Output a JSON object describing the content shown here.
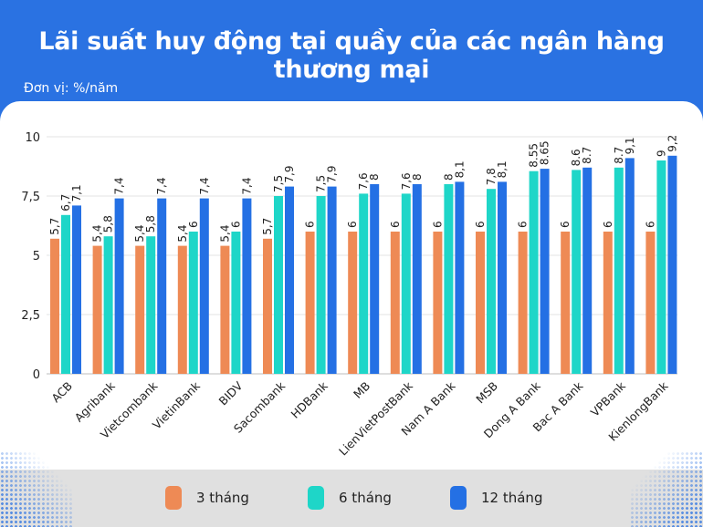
{
  "header": {
    "title": "Lãi suất huy động tại quầy của các ngân hàng thương mại",
    "unit": "Đơn vị: %/năm"
  },
  "colors": {
    "banner": "#2a72e2",
    "series_3m": "#ee8a55",
    "series_6m": "#1ed6c8",
    "series_12m": "#2470e4",
    "legend_strip": "#e0e0e0"
  },
  "legend": [
    {
      "label": "3 tháng",
      "color": "#ee8a55"
    },
    {
      "label": "6 tháng",
      "color": "#1ed6c8"
    },
    {
      "label": "12 tháng",
      "color": "#2470e4"
    }
  ],
  "chart_data": {
    "type": "bar",
    "title": "Lãi suất huy động tại quầy của các ngân hàng thương mại",
    "subtitle": "Đơn vị: %/năm",
    "xlabel": "",
    "ylabel": "%/năm",
    "ylim": [
      0,
      10
    ],
    "yticks": [
      0,
      2.5,
      5,
      7.5,
      10
    ],
    "ytick_labels": [
      "0",
      "2,5",
      "5",
      "7,5",
      "10"
    ],
    "grid": true,
    "legend_position": "bottom",
    "categories": [
      "ACB",
      "Agribank",
      "Vietcombank",
      "VietinBank",
      "BIDV",
      "Sacombank",
      "HDBank",
      "MB",
      "LienVietPostBank",
      "Nam A Bank",
      "MSB",
      "Dong A Bank",
      "Bac A Bank",
      "VPBank",
      "KienlongBank"
    ],
    "series": [
      {
        "name": "3 tháng",
        "color": "#ee8a55",
        "values": [
          5.7,
          5.4,
          5.4,
          5.4,
          5.4,
          5.7,
          6,
          6,
          6,
          6,
          6,
          6,
          6,
          6,
          6
        ],
        "labels": [
          "5,7",
          "5,4",
          "5,4",
          "5,4",
          "5,4",
          "5,7",
          "6",
          "6",
          "6",
          "6",
          "6",
          "6",
          "6",
          "6",
          "6"
        ]
      },
      {
        "name": "6 tháng",
        "color": "#1ed6c8",
        "values": [
          6.7,
          5.8,
          5.8,
          6,
          6,
          7.5,
          7.5,
          7.6,
          7.6,
          8,
          7.8,
          8.55,
          8.6,
          8.7,
          9
        ],
        "labels": [
          "6,7",
          "5,8",
          "5,8",
          "6",
          "6",
          "7,5",
          "7,5",
          "7,6",
          "7,6",
          "8",
          "7,8",
          "8.55",
          "8.6",
          "8.7",
          "9"
        ]
      },
      {
        "name": "12 tháng",
        "color": "#2470e4",
        "values": [
          7.1,
          7.4,
          7.4,
          7.4,
          7.4,
          7.9,
          7.9,
          8,
          8,
          8.1,
          8.1,
          8.65,
          8.7,
          9.1,
          9.2
        ],
        "labels": [
          "7,1",
          "7,4",
          "7,4",
          "7,4",
          "7,4",
          "7,9",
          "7,9",
          "8",
          "8",
          "8,1",
          "8,1",
          "8.65",
          "8.7",
          "9,1",
          "9,2"
        ]
      }
    ]
  }
}
